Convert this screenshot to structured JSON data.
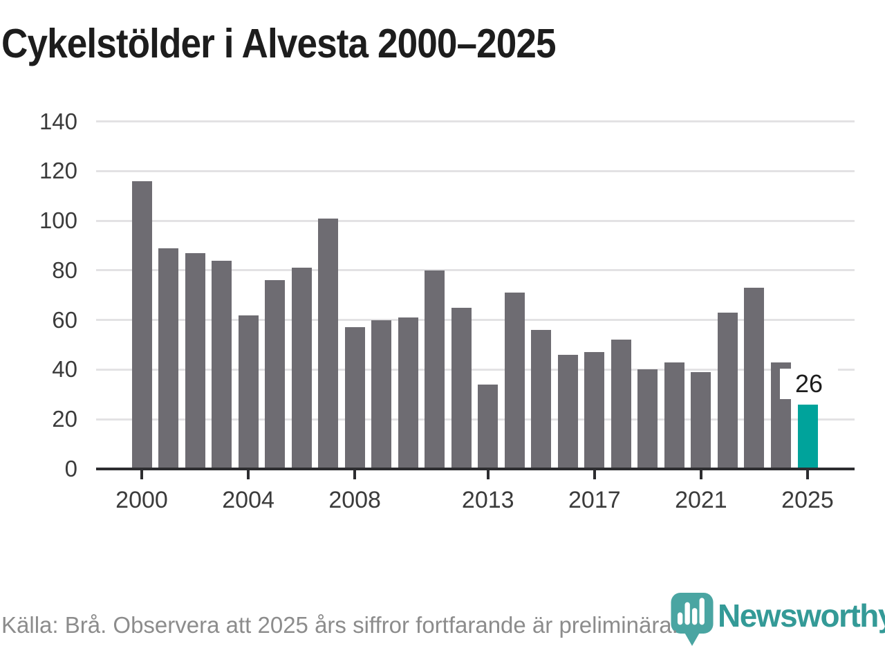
{
  "title": "Cykelstölder i Alvesta 2000–2025",
  "footer": {
    "source_note": "Källa: Brå. Observera att 2025 års siffror fortfarande är preliminära."
  },
  "logo": {
    "name": "Newsworthy",
    "icon": "bar-chart-map-pin-icon",
    "pin_color": "#4aa5a2",
    "wordmark_color": "#349a97"
  },
  "chart_data": {
    "type": "bar",
    "title": "Cykelstölder i Alvesta 2000–2025",
    "categories": [
      2000,
      2001,
      2002,
      2003,
      2004,
      2005,
      2006,
      2007,
      2008,
      2009,
      2010,
      2011,
      2012,
      2013,
      2014,
      2015,
      2016,
      2017,
      2018,
      2019,
      2020,
      2021,
      2022,
      2023,
      2024,
      2025
    ],
    "values": [
      116,
      89,
      87,
      84,
      62,
      76,
      81,
      101,
      57,
      60,
      61,
      80,
      65,
      34,
      71,
      56,
      46,
      47,
      52,
      40,
      43,
      39,
      63,
      73,
      43,
      26
    ],
    "x_tick_labels": [
      "2000",
      "2004",
      "2008",
      "2013",
      "2017",
      "2021",
      "2025"
    ],
    "y_ticks": [
      0,
      20,
      40,
      60,
      80,
      100,
      120,
      140
    ],
    "ylim": [
      0,
      140
    ],
    "xlabel": "",
    "ylabel": "",
    "grid": "horizontal",
    "legend": "none",
    "bar_color": "#6e6c72",
    "highlight_year": 2025,
    "highlight_color": "#00a39b",
    "annotation": {
      "year": 2025,
      "value": 26,
      "text": "26"
    }
  }
}
